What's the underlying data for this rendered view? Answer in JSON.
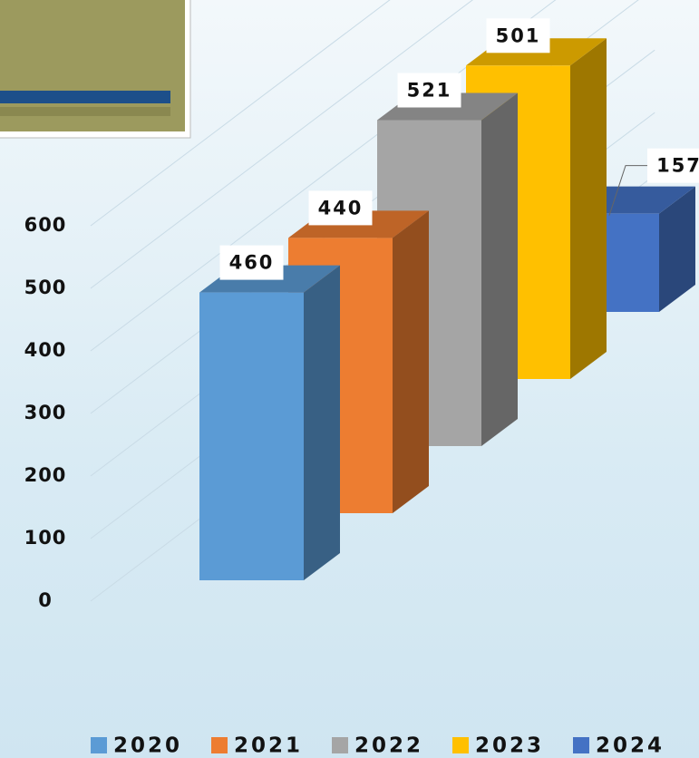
{
  "chart_data": {
    "type": "bar3d",
    "categories": [
      "2020",
      "2021",
      "2022",
      "2023",
      "2024"
    ],
    "values": [
      460,
      440,
      521,
      501,
      157
    ],
    "colors": [
      "#5b9bd5",
      "#ed7d31",
      "#a5a5a5",
      "#ffc000",
      "#4472c4"
    ],
    "ylim": [
      0,
      600
    ],
    "yticks": [
      0,
      100,
      200,
      300,
      400,
      500,
      600
    ],
    "grid": true
  }
}
